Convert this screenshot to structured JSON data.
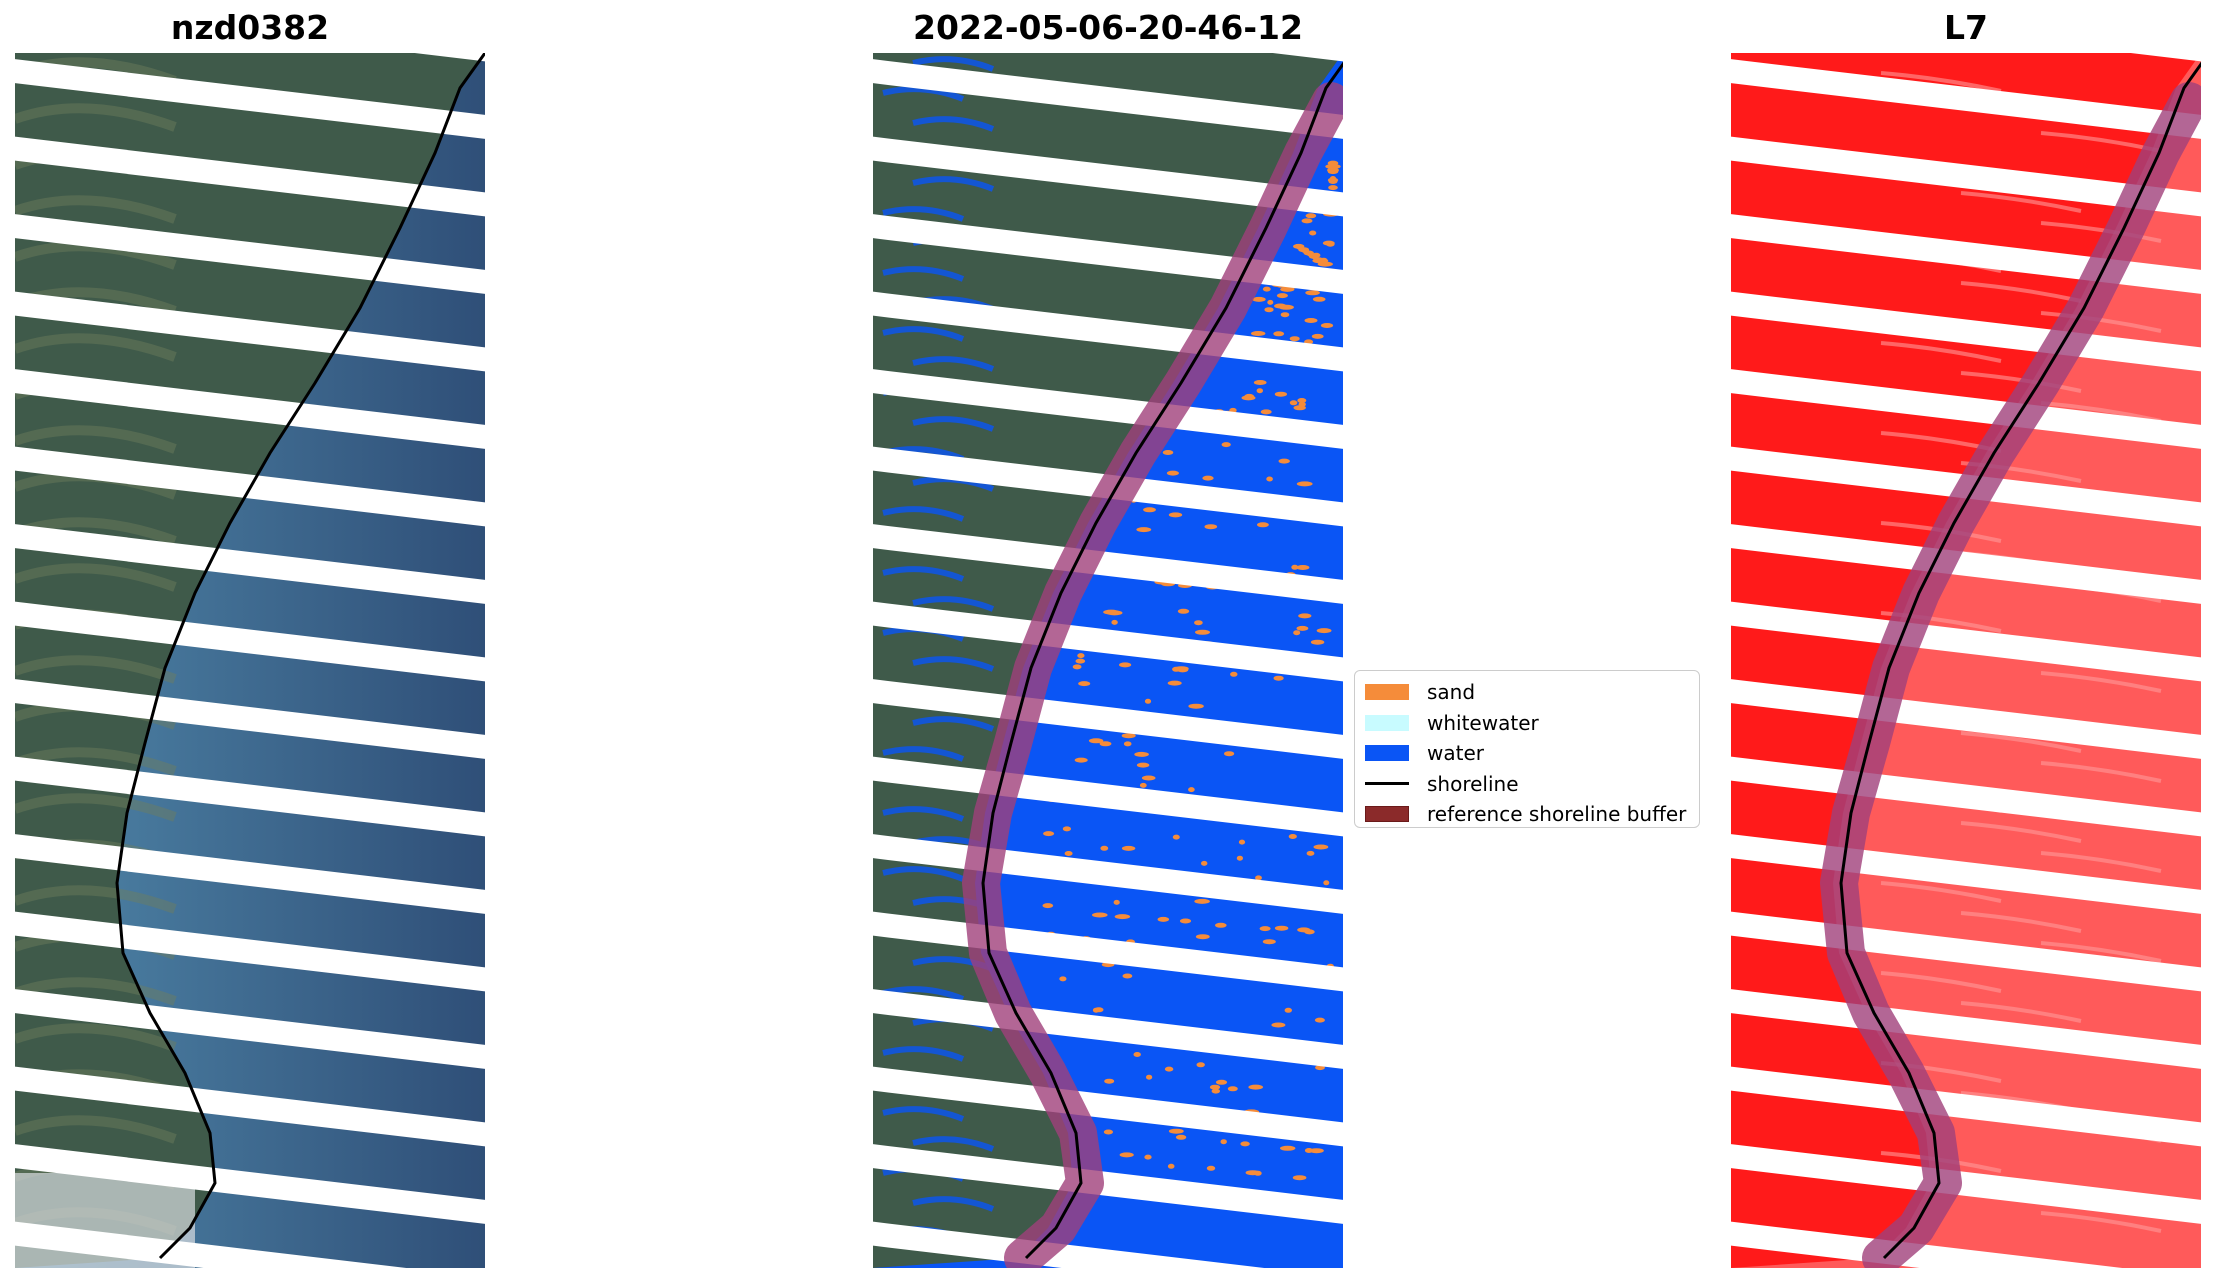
{
  "panels": [
    {
      "title": "nzd0382",
      "kind": "rgb"
    },
    {
      "title": "2022-05-06-20-46-12",
      "kind": "classified"
    },
    {
      "title": "L7",
      "kind": "mndwi"
    }
  ],
  "legend": {
    "items": [
      {
        "label": "sand",
        "color": "#f58c3a",
        "type": "patch"
      },
      {
        "label": "whitewater",
        "color": "#c8fbff",
        "type": "patch"
      },
      {
        "label": "water",
        "color": "#0a55f5",
        "type": "patch"
      },
      {
        "label": "shoreline",
        "color": "#000000",
        "type": "line"
      },
      {
        "label": "reference shoreline buffer",
        "color": "#8b2a2a",
        "type": "patch"
      }
    ]
  },
  "colors": {
    "land": "#3f5a4a",
    "sea_near": "#4f86a8",
    "sea_far": "#2f4f78",
    "water_class": "#0a55f5",
    "sand_class": "#f58c3a",
    "index_red": "#ff1a1a",
    "buffer": "#a0407a"
  }
}
